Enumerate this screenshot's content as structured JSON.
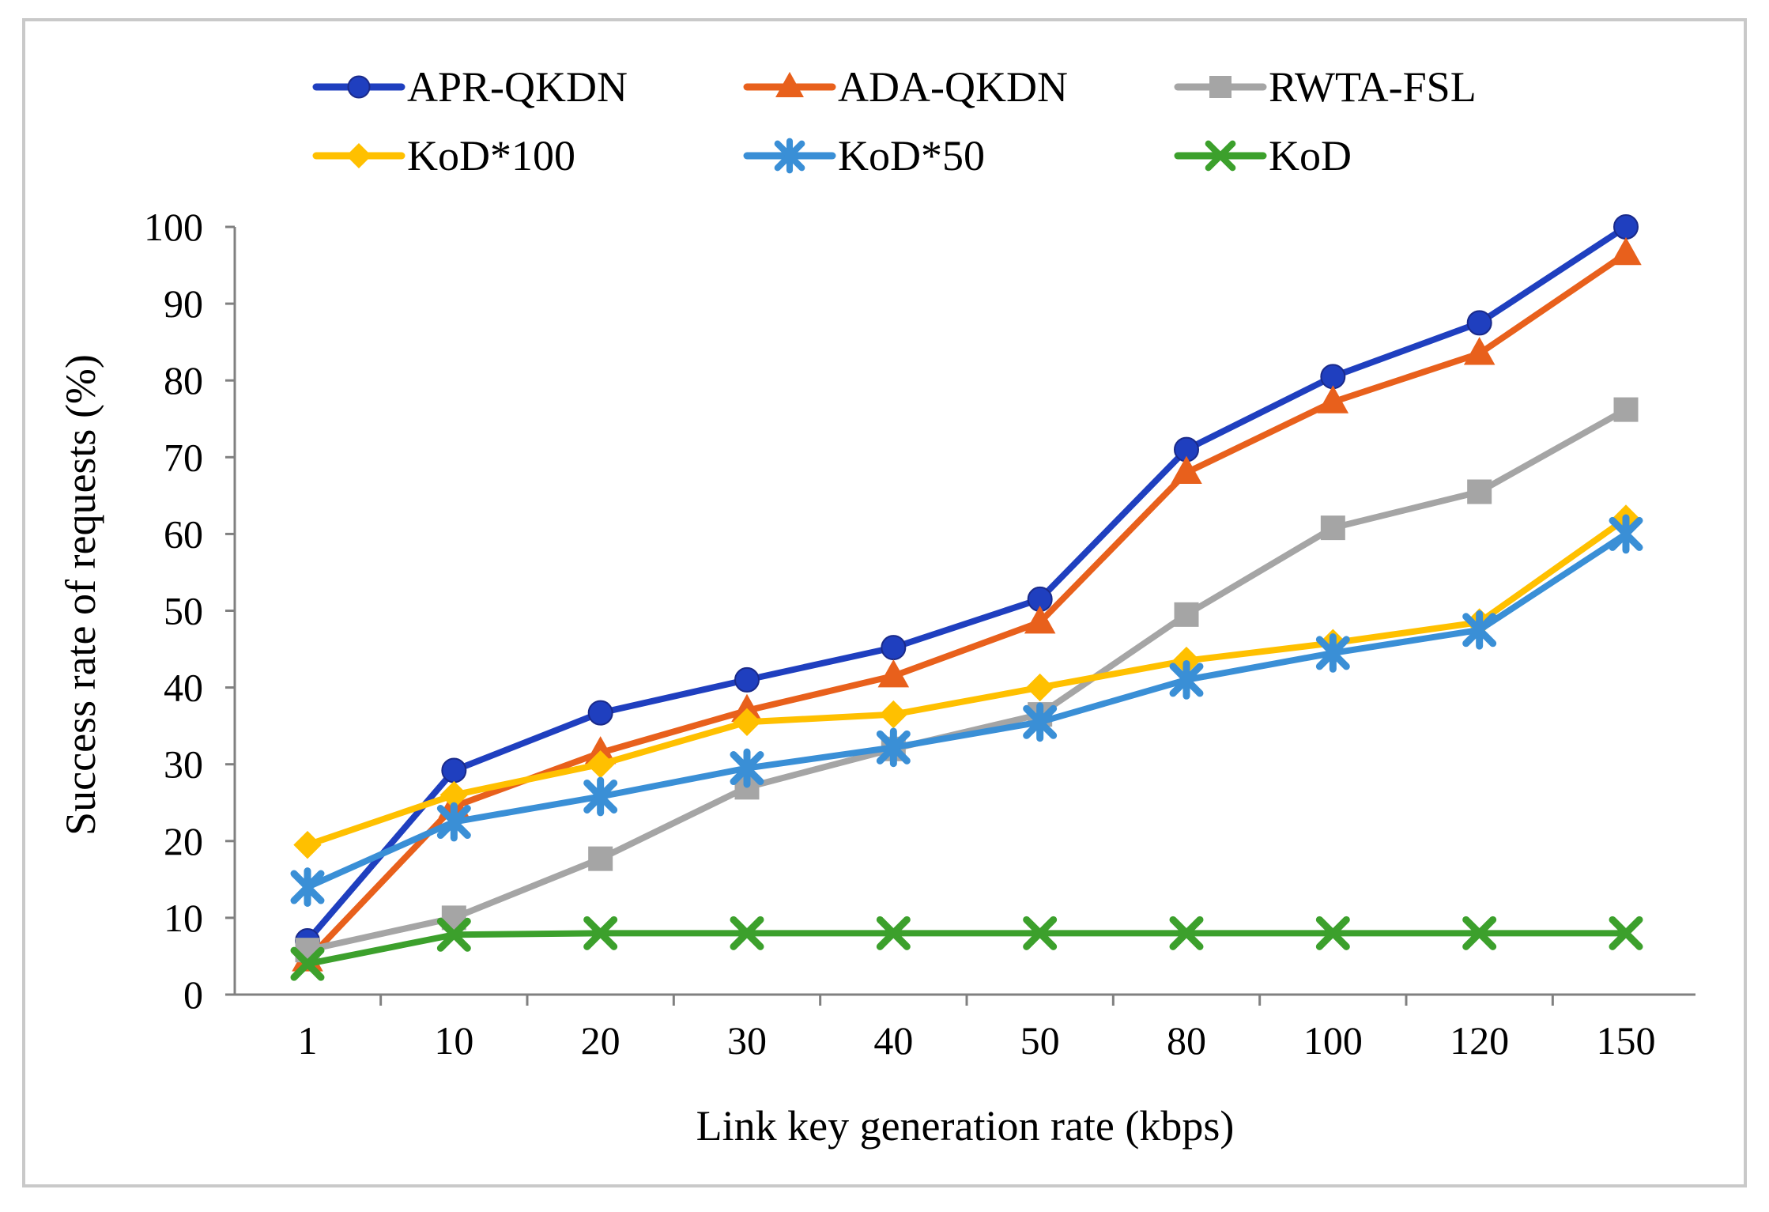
{
  "chart_data": {
    "type": "line",
    "title": "",
    "xlabel": "Link key generation rate (kbps)",
    "ylabel": "Success rate of requests (%)",
    "categories": [
      "1",
      "10",
      "20",
      "30",
      "40",
      "50",
      "80",
      "100",
      "120",
      "150"
    ],
    "ylim": [
      0,
      100
    ],
    "yticks": [
      0,
      10,
      20,
      30,
      40,
      50,
      60,
      70,
      80,
      90,
      100
    ],
    "grid": false,
    "legend_position": "top",
    "series": [
      {
        "name": "APR-QKDN",
        "color": "#1f3fbf",
        "marker": "circle",
        "values": [
          7,
          29.2,
          36.7,
          41,
          45.2,
          51.5,
          71,
          80.5,
          87.5,
          100
        ]
      },
      {
        "name": "ADA-QKDN",
        "color": "#e8601c",
        "marker": "triangle",
        "values": [
          4.5,
          24.5,
          31.5,
          37,
          41.5,
          48.5,
          68,
          77.2,
          83.5,
          96.5
        ]
      },
      {
        "name": "RWTA-FSL",
        "color": "#a5a5a5",
        "marker": "square",
        "values": [
          5.8,
          10,
          17.7,
          27,
          32,
          36.5,
          49.5,
          60.8,
          65.5,
          76.2
        ]
      },
      {
        "name": "KoD*100",
        "color": "#ffc000",
        "marker": "diamond",
        "values": [
          19.5,
          26,
          30,
          35.5,
          36.5,
          40,
          43.5,
          45.8,
          48.5,
          62
        ]
      },
      {
        "name": "KoD*50",
        "color": "#3a8fd6",
        "marker": "star",
        "values": [
          14,
          22.5,
          25.8,
          29.5,
          32.2,
          35.5,
          41,
          44.5,
          47.5,
          60
        ]
      },
      {
        "name": "KoD",
        "color": "#3ca02c",
        "marker": "x",
        "values": [
          4,
          7.8,
          8,
          8,
          8,
          8,
          8,
          8,
          8,
          8
        ]
      }
    ],
    "frame_color": "#c9c9c9",
    "axis_color": "#808080"
  }
}
